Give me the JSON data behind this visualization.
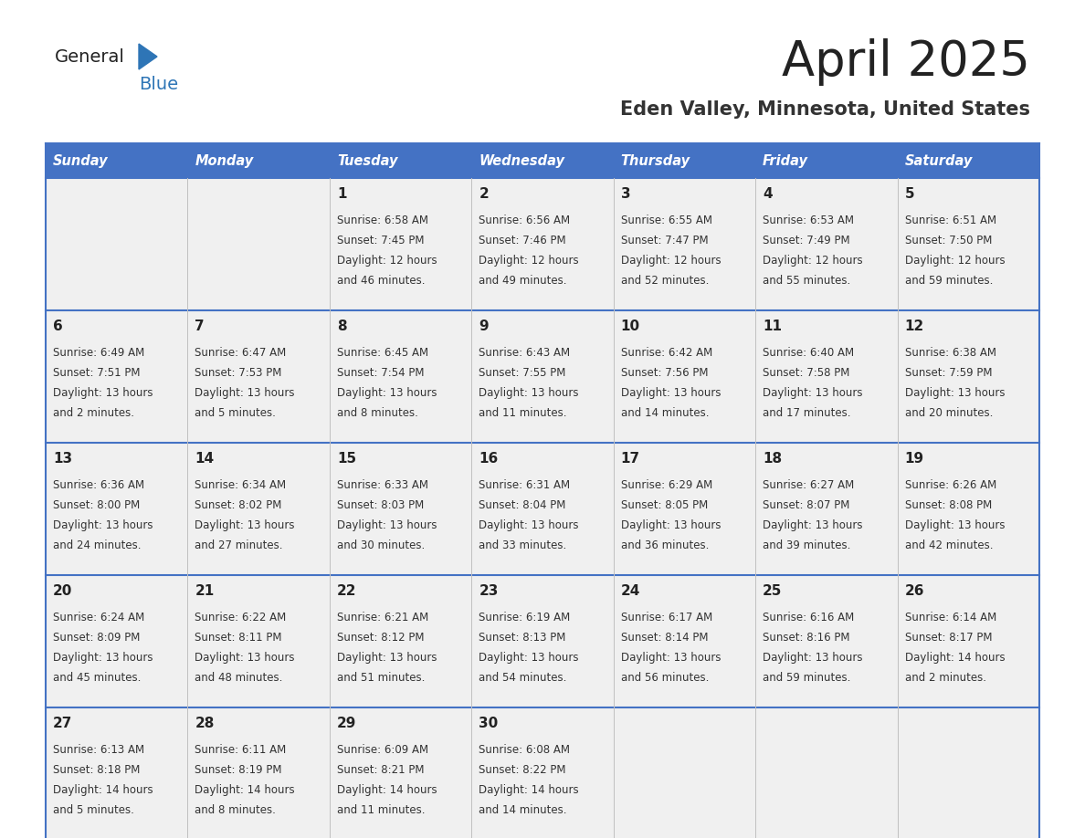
{
  "title": "April 2025",
  "subtitle": "Eden Valley, Minnesota, United States",
  "header_bg": "#4472C4",
  "header_text_color": "#FFFFFF",
  "day_names": [
    "Sunday",
    "Monday",
    "Tuesday",
    "Wednesday",
    "Thursday",
    "Friday",
    "Saturday"
  ],
  "cell_bg": "#F0F0F0",
  "border_color": "#4472C4",
  "cell_border_color": "#4472C4",
  "text_color": "#333333",
  "days": [
    {
      "day": null,
      "col": 0,
      "row": 0
    },
    {
      "day": null,
      "col": 1,
      "row": 0
    },
    {
      "day": 1,
      "col": 2,
      "row": 0,
      "sunrise": "6:58 AM",
      "sunset": "7:45 PM",
      "daylight": "12 hours\nand 46 minutes."
    },
    {
      "day": 2,
      "col": 3,
      "row": 0,
      "sunrise": "6:56 AM",
      "sunset": "7:46 PM",
      "daylight": "12 hours\nand 49 minutes."
    },
    {
      "day": 3,
      "col": 4,
      "row": 0,
      "sunrise": "6:55 AM",
      "sunset": "7:47 PM",
      "daylight": "12 hours\nand 52 minutes."
    },
    {
      "day": 4,
      "col": 5,
      "row": 0,
      "sunrise": "6:53 AM",
      "sunset": "7:49 PM",
      "daylight": "12 hours\nand 55 minutes."
    },
    {
      "day": 5,
      "col": 6,
      "row": 0,
      "sunrise": "6:51 AM",
      "sunset": "7:50 PM",
      "daylight": "12 hours\nand 59 minutes."
    },
    {
      "day": 6,
      "col": 0,
      "row": 1,
      "sunrise": "6:49 AM",
      "sunset": "7:51 PM",
      "daylight": "13 hours\nand 2 minutes."
    },
    {
      "day": 7,
      "col": 1,
      "row": 1,
      "sunrise": "6:47 AM",
      "sunset": "7:53 PM",
      "daylight": "13 hours\nand 5 minutes."
    },
    {
      "day": 8,
      "col": 2,
      "row": 1,
      "sunrise": "6:45 AM",
      "sunset": "7:54 PM",
      "daylight": "13 hours\nand 8 minutes."
    },
    {
      "day": 9,
      "col": 3,
      "row": 1,
      "sunrise": "6:43 AM",
      "sunset": "7:55 PM",
      "daylight": "13 hours\nand 11 minutes."
    },
    {
      "day": 10,
      "col": 4,
      "row": 1,
      "sunrise": "6:42 AM",
      "sunset": "7:56 PM",
      "daylight": "13 hours\nand 14 minutes."
    },
    {
      "day": 11,
      "col": 5,
      "row": 1,
      "sunrise": "6:40 AM",
      "sunset": "7:58 PM",
      "daylight": "13 hours\nand 17 minutes."
    },
    {
      "day": 12,
      "col": 6,
      "row": 1,
      "sunrise": "6:38 AM",
      "sunset": "7:59 PM",
      "daylight": "13 hours\nand 20 minutes."
    },
    {
      "day": 13,
      "col": 0,
      "row": 2,
      "sunrise": "6:36 AM",
      "sunset": "8:00 PM",
      "daylight": "13 hours\nand 24 minutes."
    },
    {
      "day": 14,
      "col": 1,
      "row": 2,
      "sunrise": "6:34 AM",
      "sunset": "8:02 PM",
      "daylight": "13 hours\nand 27 minutes."
    },
    {
      "day": 15,
      "col": 2,
      "row": 2,
      "sunrise": "6:33 AM",
      "sunset": "8:03 PM",
      "daylight": "13 hours\nand 30 minutes."
    },
    {
      "day": 16,
      "col": 3,
      "row": 2,
      "sunrise": "6:31 AM",
      "sunset": "8:04 PM",
      "daylight": "13 hours\nand 33 minutes."
    },
    {
      "day": 17,
      "col": 4,
      "row": 2,
      "sunrise": "6:29 AM",
      "sunset": "8:05 PM",
      "daylight": "13 hours\nand 36 minutes."
    },
    {
      "day": 18,
      "col": 5,
      "row": 2,
      "sunrise": "6:27 AM",
      "sunset": "8:07 PM",
      "daylight": "13 hours\nand 39 minutes."
    },
    {
      "day": 19,
      "col": 6,
      "row": 2,
      "sunrise": "6:26 AM",
      "sunset": "8:08 PM",
      "daylight": "13 hours\nand 42 minutes."
    },
    {
      "day": 20,
      "col": 0,
      "row": 3,
      "sunrise": "6:24 AM",
      "sunset": "8:09 PM",
      "daylight": "13 hours\nand 45 minutes."
    },
    {
      "day": 21,
      "col": 1,
      "row": 3,
      "sunrise": "6:22 AM",
      "sunset": "8:11 PM",
      "daylight": "13 hours\nand 48 minutes."
    },
    {
      "day": 22,
      "col": 2,
      "row": 3,
      "sunrise": "6:21 AM",
      "sunset": "8:12 PM",
      "daylight": "13 hours\nand 51 minutes."
    },
    {
      "day": 23,
      "col": 3,
      "row": 3,
      "sunrise": "6:19 AM",
      "sunset": "8:13 PM",
      "daylight": "13 hours\nand 54 minutes."
    },
    {
      "day": 24,
      "col": 4,
      "row": 3,
      "sunrise": "6:17 AM",
      "sunset": "8:14 PM",
      "daylight": "13 hours\nand 56 minutes."
    },
    {
      "day": 25,
      "col": 5,
      "row": 3,
      "sunrise": "6:16 AM",
      "sunset": "8:16 PM",
      "daylight": "13 hours\nand 59 minutes."
    },
    {
      "day": 26,
      "col": 6,
      "row": 3,
      "sunrise": "6:14 AM",
      "sunset": "8:17 PM",
      "daylight": "14 hours\nand 2 minutes."
    },
    {
      "day": 27,
      "col": 0,
      "row": 4,
      "sunrise": "6:13 AM",
      "sunset": "8:18 PM",
      "daylight": "14 hours\nand 5 minutes."
    },
    {
      "day": 28,
      "col": 1,
      "row": 4,
      "sunrise": "6:11 AM",
      "sunset": "8:19 PM",
      "daylight": "14 hours\nand 8 minutes."
    },
    {
      "day": 29,
      "col": 2,
      "row": 4,
      "sunrise": "6:09 AM",
      "sunset": "8:21 PM",
      "daylight": "14 hours\nand 11 minutes."
    },
    {
      "day": 30,
      "col": 3,
      "row": 4,
      "sunrise": "6:08 AM",
      "sunset": "8:22 PM",
      "daylight": "14 hours\nand 14 minutes."
    },
    {
      "day": null,
      "col": 4,
      "row": 4
    },
    {
      "day": null,
      "col": 5,
      "row": 4
    },
    {
      "day": null,
      "col": 6,
      "row": 4
    }
  ]
}
